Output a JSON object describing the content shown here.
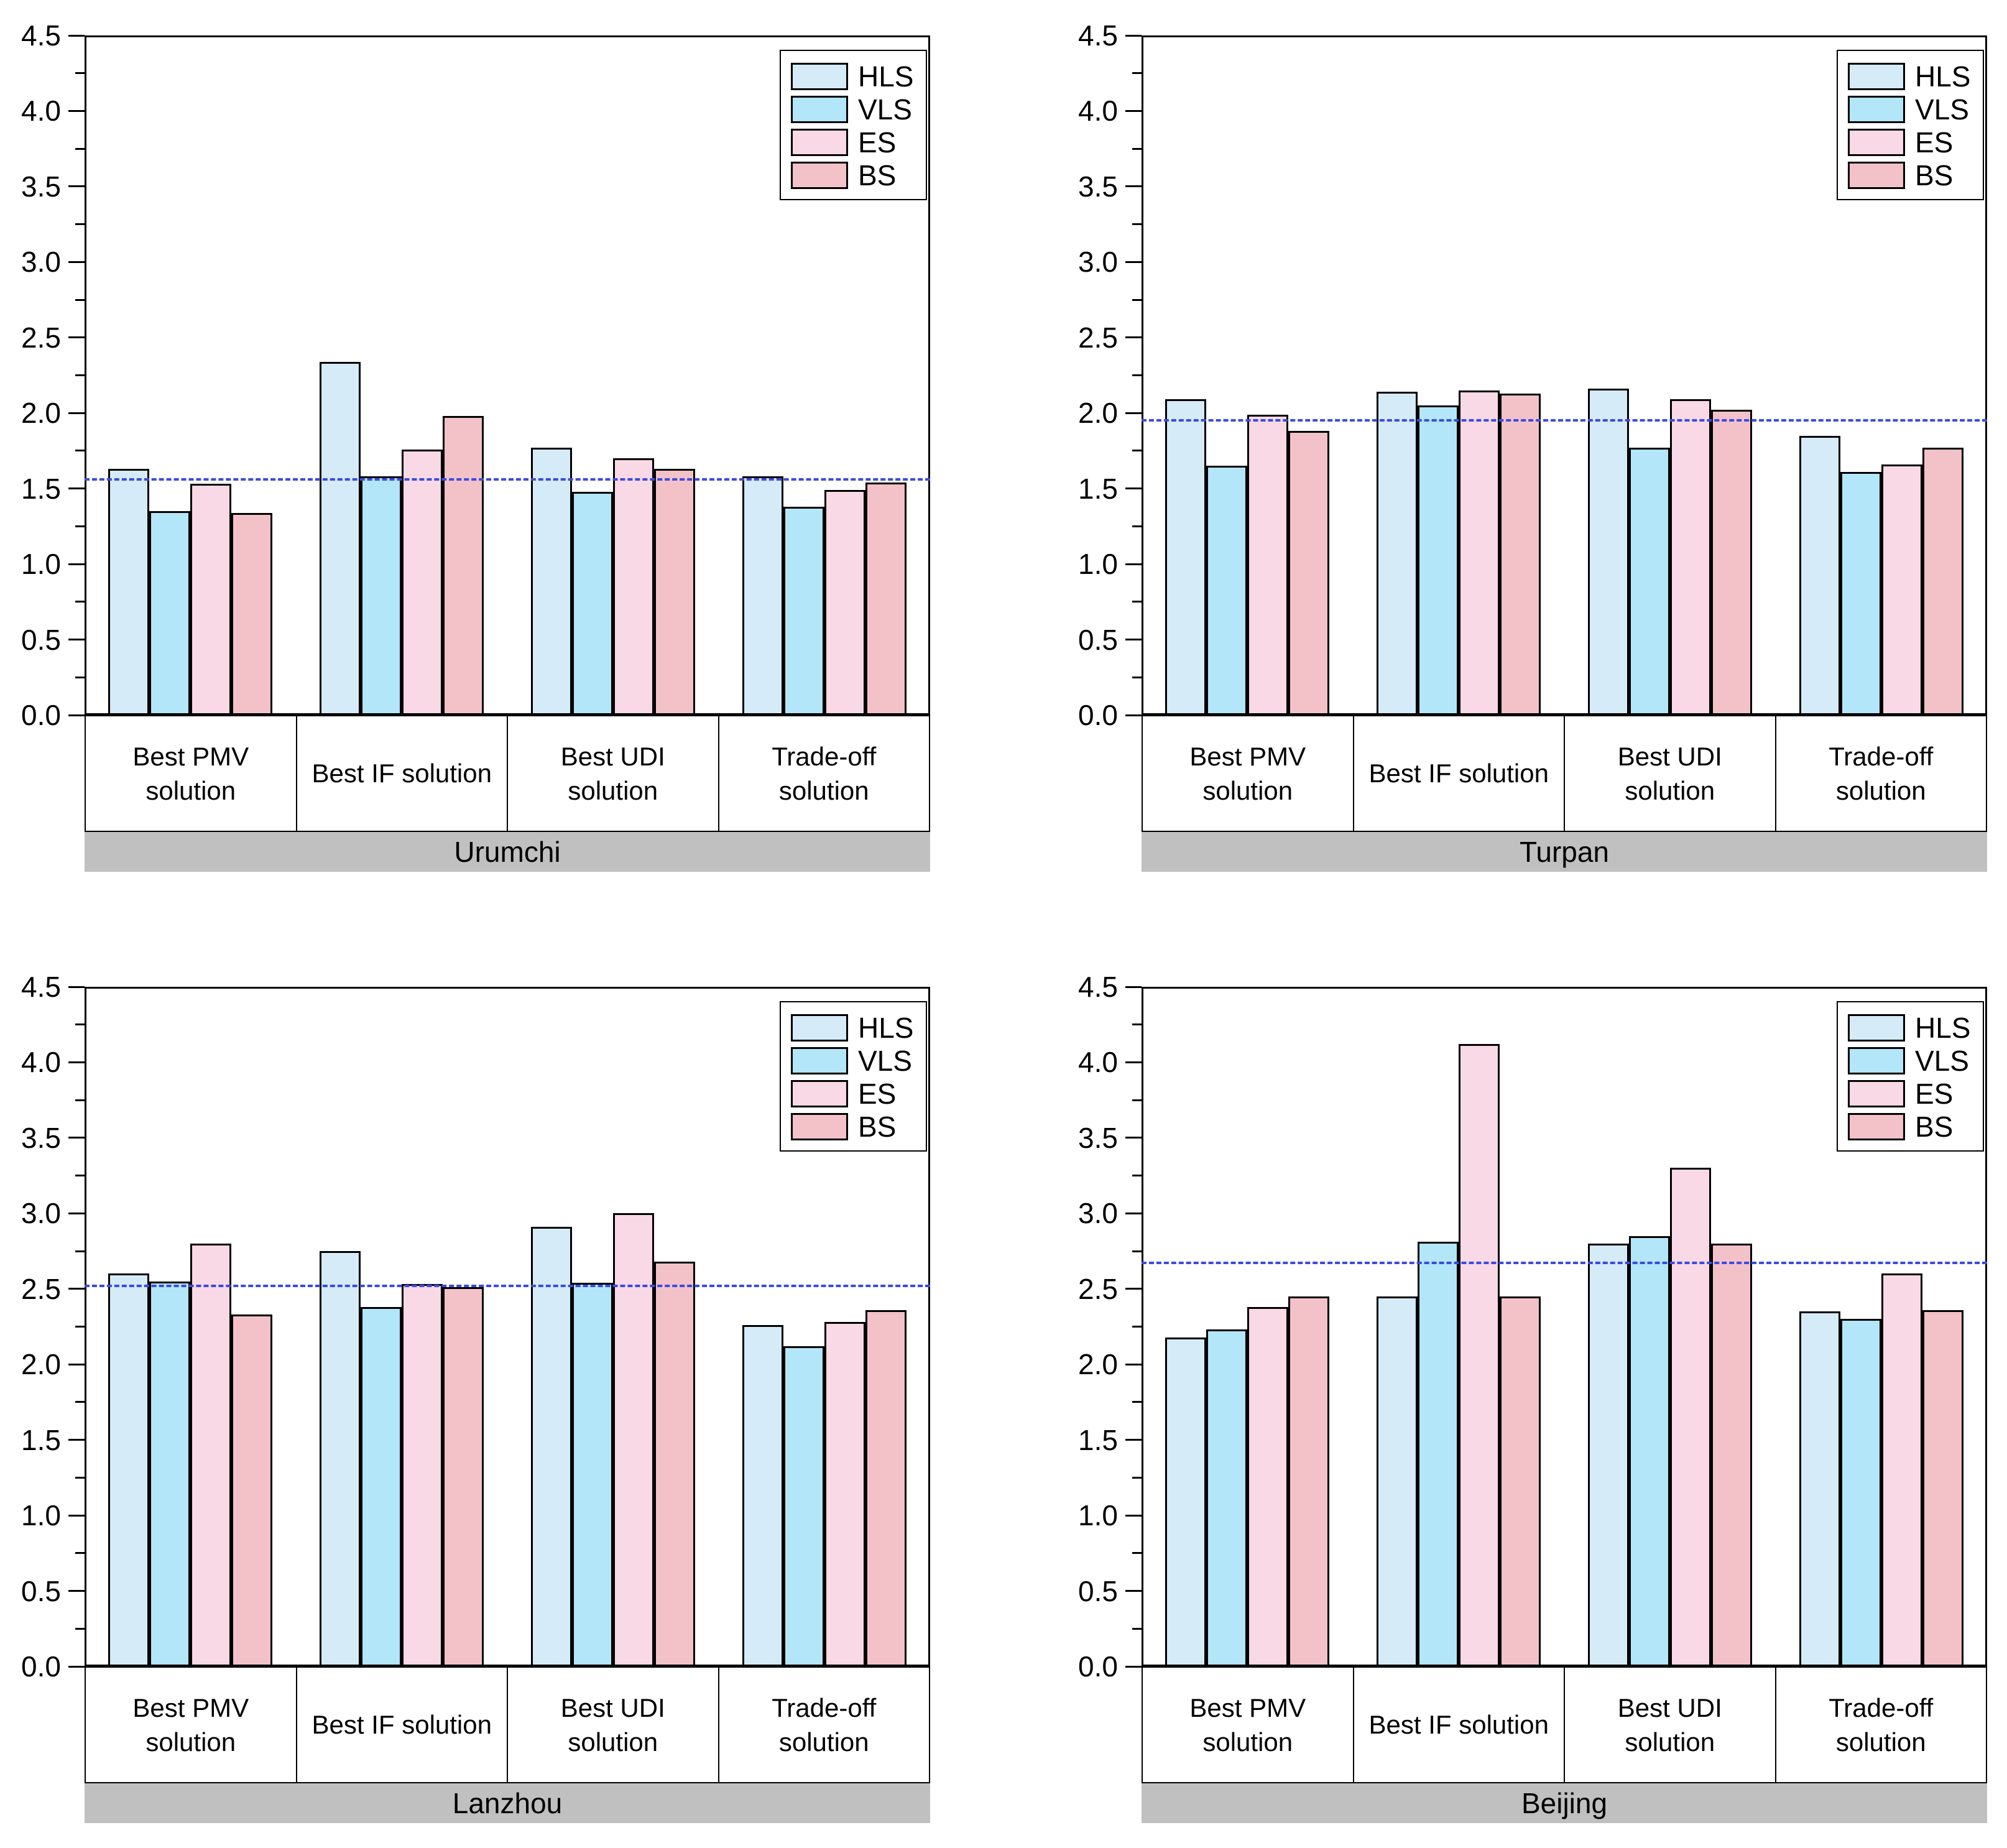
{
  "figure_title": "",
  "axis": {
    "ymin": 0.0,
    "ymax": 4.5,
    "major_step": 0.5,
    "minor_step": 0.25,
    "tick_labels": [
      "0.0",
      "0.5",
      "1.0",
      "1.5",
      "2.0",
      "2.5",
      "3.0",
      "3.5",
      "4.0",
      "4.5"
    ]
  },
  "legend": {
    "position": "top-right",
    "entries": [
      "HLS",
      "VLS",
      "ES",
      "BS"
    ]
  },
  "colors": {
    "HLS": "#D5EBF8",
    "VLS": "#B3E6F9",
    "ES": "#F8D9E5",
    "BS": "#F3C2C9",
    "bar_border": "#000000",
    "reference_line": "#3D4BE0",
    "band_fill": "#C0C0C0",
    "frame": "#000000"
  },
  "chart_data": [
    {
      "type": "bar",
      "panel": "top-left",
      "group_title": "Urumchi",
      "categories": [
        "Best PMV\nsolution",
        "Best IF solution",
        "Best UDI\nsolution",
        "Trade-off\nsolution"
      ],
      "series": [
        {
          "name": "HLS",
          "values": [
            1.63,
            2.34,
            1.77,
            1.58
          ]
        },
        {
          "name": "VLS",
          "values": [
            1.35,
            1.58,
            1.48,
            1.38
          ]
        },
        {
          "name": "ES",
          "values": [
            1.53,
            1.76,
            1.7,
            1.49
          ]
        },
        {
          "name": "BS",
          "values": [
            1.34,
            1.98,
            1.63,
            1.54
          ]
        }
      ],
      "reference_line": 1.56,
      "ylim": [
        0,
        4.5
      ],
      "grid": false,
      "legend_position": "top-right"
    },
    {
      "type": "bar",
      "panel": "top-right",
      "group_title": "Turpan",
      "categories": [
        "Best PMV\nsolution",
        "Best IF solution",
        "Best UDI\nsolution",
        "Trade-off\nsolution"
      ],
      "series": [
        {
          "name": "HLS",
          "values": [
            2.09,
            2.14,
            2.16,
            1.85
          ]
        },
        {
          "name": "VLS",
          "values": [
            1.65,
            2.05,
            1.77,
            1.61
          ]
        },
        {
          "name": "ES",
          "values": [
            1.99,
            2.15,
            2.09,
            1.66
          ]
        },
        {
          "name": "BS",
          "values": [
            1.88,
            2.13,
            2.02,
            1.77
          ]
        }
      ],
      "reference_line": 1.95,
      "ylim": [
        0,
        4.5
      ],
      "grid": false,
      "legend_position": "top-right"
    },
    {
      "type": "bar",
      "panel": "bottom-left",
      "group_title": "Lanzhou",
      "categories": [
        "Best PMV\nsolution",
        "Best IF solution",
        "Best UDI\nsolution",
        "Trade-off\nsolution"
      ],
      "series": [
        {
          "name": "HLS",
          "values": [
            2.6,
            2.75,
            2.91,
            2.26
          ]
        },
        {
          "name": "VLS",
          "values": [
            2.55,
            2.38,
            2.54,
            2.12
          ]
        },
        {
          "name": "ES",
          "values": [
            2.8,
            2.53,
            3.0,
            2.28
          ]
        },
        {
          "name": "BS",
          "values": [
            2.33,
            2.51,
            2.68,
            2.36
          ]
        }
      ],
      "reference_line": 2.52,
      "ylim": [
        0,
        4.5
      ],
      "grid": false,
      "legend_position": "top-right"
    },
    {
      "type": "bar",
      "panel": "bottom-right",
      "group_title": "Beijing",
      "categories": [
        "Best PMV\nsolution",
        "Best IF solution",
        "Best UDI\nsolution",
        "Trade-off\nsolution"
      ],
      "series": [
        {
          "name": "HLS",
          "values": [
            2.18,
            2.45,
            2.8,
            2.35
          ]
        },
        {
          "name": "VLS",
          "values": [
            2.23,
            2.81,
            2.85,
            2.3
          ]
        },
        {
          "name": "ES",
          "values": [
            2.38,
            4.12,
            3.3,
            2.6
          ]
        },
        {
          "name": "BS",
          "values": [
            2.45,
            2.45,
            2.8,
            2.36
          ]
        }
      ],
      "reference_line": 2.67,
      "ylim": [
        0,
        4.5
      ],
      "grid": false,
      "legend_position": "top-right"
    }
  ]
}
